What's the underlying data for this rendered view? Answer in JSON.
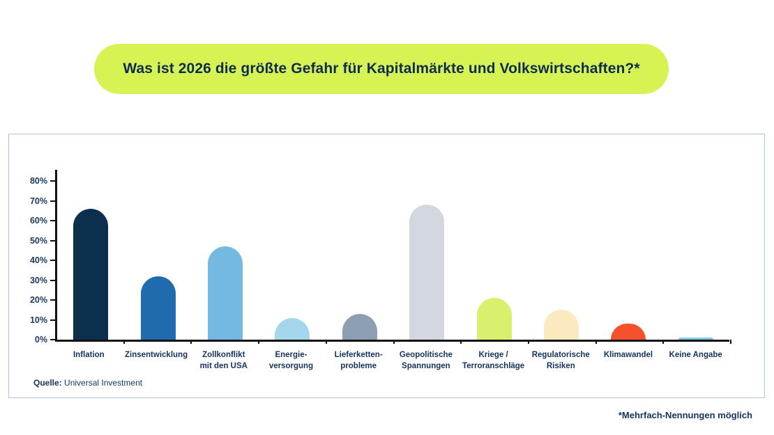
{
  "title": "Was ist 2026 die größte Gefahr für Kapitalmärkte und Volkswirtschaften?*",
  "footnote": "*Mehrfach-Nennungen möglich",
  "source": {
    "label": "Quelle:",
    "text": "Universal Investment"
  },
  "colors": {
    "pill_bg": "#d7f353",
    "title_text": "#0e2b50",
    "axis": "#111111",
    "label_text": "#14335c",
    "card_border": "#b3c3cf"
  },
  "chart_data": {
    "type": "bar",
    "title": "Was ist 2026 die größte Gefahr für Kapitalmärkte und Volkswirtschaften?*",
    "xlabel": "",
    "ylabel": "",
    "ylim": [
      0,
      80
    ],
    "grid": false,
    "legend": "none",
    "yticks": [
      "0%",
      "10%",
      "20%",
      "30%",
      "40%",
      "50%",
      "60%",
      "70%",
      "80%"
    ],
    "categories": [
      "Inflation",
      "Zinsentwicklung",
      "Zollkonflikt\nmit den USA",
      "Energie-\nversorgung",
      "Lieferketten-\nprobleme",
      "Geopolitische\nSpannungen",
      "Kriege /\nTerroranschläge",
      "Regulatorische\nRisiken",
      "Klimawandel",
      "Keine Angabe"
    ],
    "values": [
      66,
      32,
      47,
      11,
      13,
      68,
      21,
      15,
      8,
      1
    ],
    "bar_colors": [
      "#0d2f4e",
      "#1f6bad",
      "#74b9e0",
      "#a5d7ec",
      "#8d9fb2",
      "#d2d8dd",
      "#d9f06e",
      "#fbe9c0",
      "#f4512c",
      "#7fc4e3"
    ]
  }
}
